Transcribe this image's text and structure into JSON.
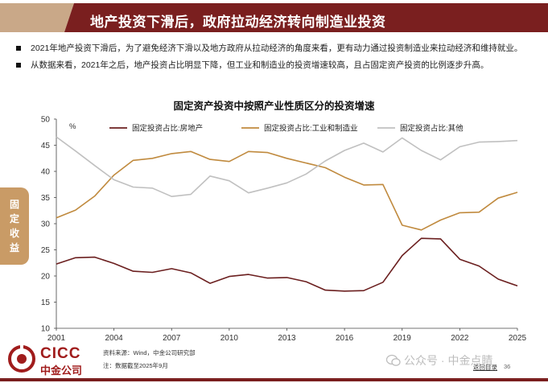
{
  "header": {
    "title": "地产投资下滑后，政府拉动经济转向制造业投资",
    "colors": {
      "bar_dark": "#7a1f1f",
      "bar_light": "#c9a888"
    }
  },
  "bullets": [
    "2021年地产投资下滑后，为了避免经济下滑以及地方政府从拉动经济的角度来看，更有动力通过投资制造业来拉动经济和维持就业。",
    "从数据来看，2021年之后，地产投资占比明显下降，但工业和制造业的投资增速较高，且占固定资产投资的比例逐步升高。"
  ],
  "side_tab": {
    "label": "固定收益",
    "color": "#c99b66"
  },
  "chart_data": {
    "type": "line",
    "title": "固定资产投资中按照产业性质区分的投资增速",
    "unit_label": "%",
    "x": [
      2001,
      2002,
      2003,
      2004,
      2005,
      2006,
      2007,
      2008,
      2009,
      2010,
      2011,
      2012,
      2013,
      2014,
      2015,
      2016,
      2017,
      2018,
      2019,
      2020,
      2021,
      2022,
      2023,
      2024,
      2025
    ],
    "x_ticks": [
      "2001",
      "2004",
      "2007",
      "2010",
      "2013",
      "2016",
      "2019",
      "2022",
      "2025"
    ],
    "y_ticks": [
      "10",
      "15",
      "20",
      "25",
      "30",
      "35",
      "40",
      "45",
      "50"
    ],
    "ylim": [
      10,
      50
    ],
    "xlim": [
      2001,
      2025
    ],
    "grid": false,
    "legend_position": "top",
    "series": [
      {
        "name": "固定投资占比:房地产",
        "color": "#6b1f1f",
        "values": [
          22.3,
          23.5,
          23.6,
          22.4,
          20.9,
          20.7,
          21.4,
          20.6,
          18.6,
          19.9,
          20.3,
          19.6,
          19.7,
          18.9,
          17.3,
          17.1,
          17.2,
          18.8,
          23.9,
          27.2,
          27.1,
          23.2,
          21.9,
          19.4,
          18.1
        ]
      },
      {
        "name": "固定投资占比:工业和制造业",
        "color": "#c08a3e",
        "values": [
          31.1,
          32.6,
          35.3,
          39.3,
          42.1,
          42.5,
          43.4,
          43.8,
          42.3,
          41.9,
          43.8,
          43.6,
          42.5,
          41.6,
          40.7,
          38.9,
          37.4,
          37.5,
          29.7,
          28.8,
          30.7,
          32.1,
          32.2,
          34.9,
          36.0
        ]
      },
      {
        "name": "固定投资占比:其他",
        "color": "#c0c0c0",
        "values": [
          46.6,
          43.9,
          41.1,
          38.4,
          37.0,
          36.8,
          35.2,
          35.6,
          39.1,
          38.2,
          35.9,
          36.8,
          37.8,
          39.5,
          42.0,
          44.0,
          45.4,
          43.7,
          46.4,
          44.0,
          42.2,
          44.7,
          45.6,
          45.7,
          45.9
        ]
      }
    ]
  },
  "footer": {
    "logo_en": "CICC",
    "logo_cn": "中金公司",
    "source": "资料来源：Wind，中金公司研究部",
    "note": "注：数据截至2025年9月",
    "watermark": "公众号 · 中金点睛",
    "back_link": "返回目录",
    "page_number": "36"
  }
}
